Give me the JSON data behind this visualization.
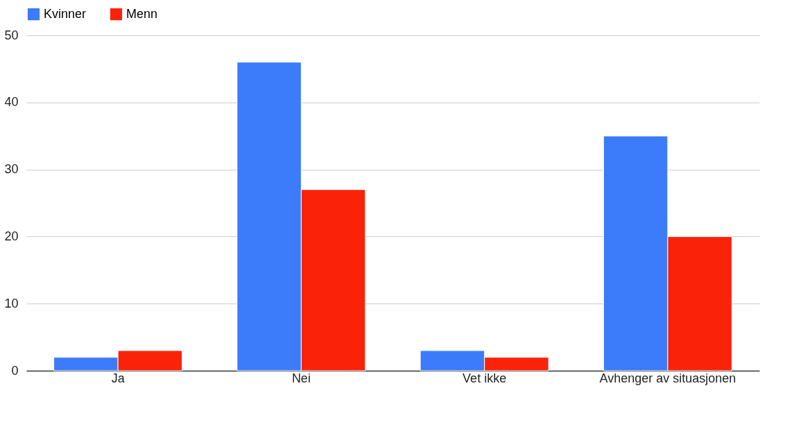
{
  "chart_data": {
    "type": "bar",
    "categories": [
      "Ja",
      "Nei",
      "Vet ikke",
      "Avhenger av situasjonen"
    ],
    "series": [
      {
        "name": "Kvinner",
        "color": "#3c7bfa",
        "values": [
          2,
          46,
          3,
          35
        ]
      },
      {
        "name": "Menn",
        "color": "#fa2309",
        "values": [
          3,
          27,
          2,
          20
        ]
      }
    ],
    "ylim": [
      0,
      50
    ],
    "yticks": [
      0,
      10,
      20,
      30,
      40,
      50
    ],
    "grid": "y",
    "legend": "top"
  }
}
